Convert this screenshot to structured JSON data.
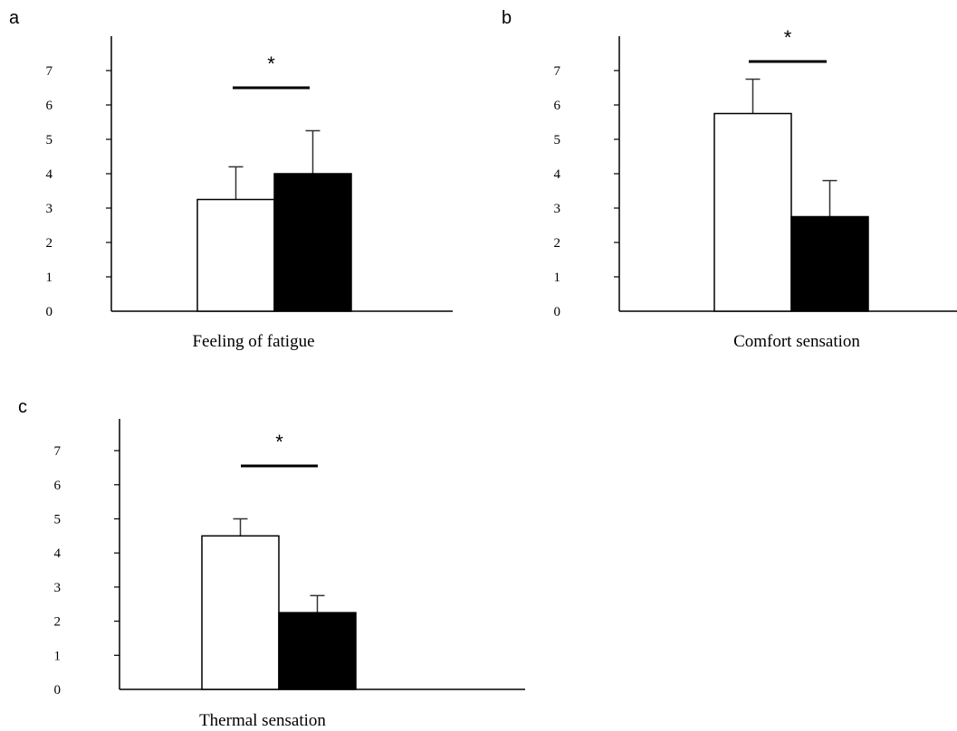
{
  "chart_data": [
    {
      "type": "bar",
      "panel": "a",
      "xlabel": "Feeling of fatigue",
      "ylim": [
        0,
        7
      ],
      "yticks": [
        0,
        1,
        2,
        3,
        4,
        5,
        6,
        7
      ],
      "grid": false,
      "series": [
        {
          "values": [
            3.25
          ],
          "error": [
            0.95
          ],
          "color": "#ffffff"
        },
        {
          "values": [
            4.0
          ],
          "error": [
            1.25
          ],
          "color": "#000000"
        }
      ],
      "significance": "*"
    },
    {
      "type": "bar",
      "panel": "b",
      "xlabel": "Comfort sensation",
      "ylim": [
        0,
        7
      ],
      "yticks": [
        0,
        1,
        2,
        3,
        4,
        5,
        6,
        7
      ],
      "grid": false,
      "series": [
        {
          "values": [
            5.75
          ],
          "error": [
            1.0
          ],
          "color": "#ffffff"
        },
        {
          "values": [
            2.75
          ],
          "error": [
            1.05
          ],
          "color": "#000000"
        }
      ],
      "significance": "*"
    },
    {
      "type": "bar",
      "panel": "c",
      "xlabel": "Thermal sensation",
      "ylim": [
        0,
        7
      ],
      "yticks": [
        0,
        1,
        2,
        3,
        4,
        5,
        6,
        7
      ],
      "grid": false,
      "series": [
        {
          "values": [
            4.5
          ],
          "error": [
            0.5
          ],
          "color": "#ffffff"
        },
        {
          "values": [
            2.25
          ],
          "error": [
            0.5
          ],
          "color": "#000000"
        }
      ],
      "significance": "*"
    }
  ]
}
